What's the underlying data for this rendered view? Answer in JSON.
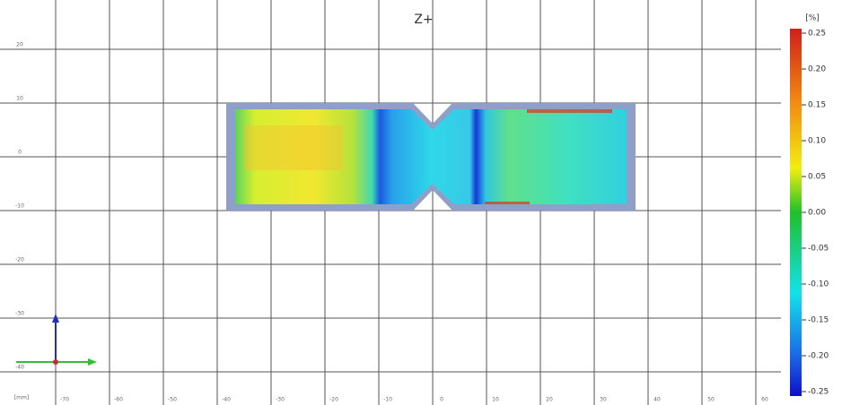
{
  "view": {
    "title": "Z+",
    "x_unit": "[mm]",
    "xticks": [
      -70,
      -60,
      -50,
      -40,
      -30,
      -20,
      -10,
      0,
      10,
      20,
      30,
      40,
      50,
      60
    ],
    "yticks": [
      20,
      10,
      0,
      -10,
      -20,
      -30,
      -40
    ]
  },
  "colorbar": {
    "unit": "[%]",
    "ticks": [
      0.25,
      {
        "value": 0.2,
        "label": "0.20"
      },
      0.15,
      {
        "value": 0.1,
        "label": "0.10"
      },
      0.05,
      {
        "value": 0,
        "label": "0.00"
      },
      -0.05,
      {
        "value": -0.1,
        "label": "-0.10"
      },
      -0.15,
      {
        "value": -0.2,
        "label": "-0.20"
      },
      -0.25
    ]
  }
}
